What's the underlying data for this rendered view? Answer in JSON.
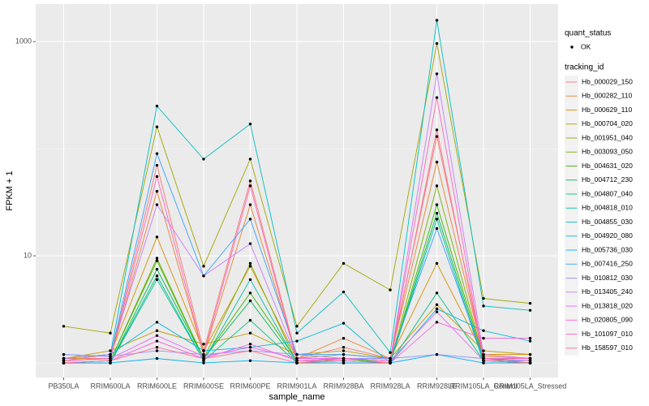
{
  "chart_data": {
    "type": "line",
    "x_label": "sample_name",
    "y_label": "FPKM + 1",
    "log_y": true,
    "grid": true,
    "legend_position": "right",
    "shape_legend": {
      "title": "quant_status",
      "labels": [
        "OK"
      ]
    },
    "legend_title": "tracking_id",
    "categories": [
      "PB350LA",
      "RRIM600LA",
      "RRIM600LE",
      "RRIM600SE",
      "RRIM600PE",
      "RRIM901LA",
      "RRIM928BA",
      "RRIM928LA",
      "RRIM928LE",
      "RRIM105LA_Control",
      "RRIM105LA_Stressed"
    ],
    "ylim": [
      0.73,
      2240
    ],
    "yticks": [
      10,
      1000
    ],
    "series": [
      {
        "name": "Hb_000029_150",
        "color": "#F8766D",
        "values": [
          1.1,
          1.1,
          70,
          1.3,
          50,
          1.1,
          1.4,
          1.1,
          130,
          1.2,
          1.1
        ]
      },
      {
        "name": "Hb_000282_110",
        "color": "#EA8331",
        "values": [
          1.05,
          1.1,
          40,
          1.2,
          30,
          1.1,
          1.7,
          1.1,
          75,
          1.15,
          1.1
        ]
      },
      {
        "name": "Hb_000629_110",
        "color": "#D89000",
        "values": [
          1.05,
          1.2,
          15,
          1.3,
          8,
          1.1,
          1.2,
          1.1,
          8.5,
          1.2,
          1.2
        ]
      },
      {
        "name": "Hb_000704_020",
        "color": "#C09B00",
        "values": [
          1.1,
          1.3,
          2.0,
          1.5,
          1.9,
          1.2,
          1.3,
          1.1,
          3.5,
          1.3,
          1.2
        ]
      },
      {
        "name": "Hb_001951_040",
        "color": "#A3A500",
        "values": [
          2.2,
          1.9,
          160,
          8,
          80,
          2.2,
          8.5,
          4.8,
          960,
          4.0,
          3.6
        ]
      },
      {
        "name": "Hb_003093_050",
        "color": "#7CAE00",
        "values": [
          1.0,
          1.05,
          9.5,
          1.1,
          8.5,
          1.0,
          1.1,
          1.0,
          45,
          1.1,
          1.05
        ]
      },
      {
        "name": "Hb_004631_020",
        "color": "#39B600",
        "values": [
          1.0,
          1.05,
          9,
          1.1,
          4.5,
          1.05,
          1.1,
          1.0,
          30,
          1.1,
          1.0
        ]
      },
      {
        "name": "Hb_004712_230",
        "color": "#00BB4E",
        "values": [
          1.0,
          1.0,
          7.5,
          1.1,
          3.8,
          1.0,
          1.05,
          1.0,
          25,
          1.05,
          1.0
        ]
      },
      {
        "name": "Hb_004807_040",
        "color": "#00BF7D",
        "values": [
          1.0,
          1.0,
          6.5,
          1.05,
          2.5,
          1.0,
          1.0,
          1.0,
          4.5,
          1.05,
          1.0
        ]
      },
      {
        "name": "Hb_004818_010",
        "color": "#00C1A3",
        "values": [
          1.0,
          1.0,
          6.0,
          1.05,
          6.0,
          1.0,
          1.0,
          1.0,
          22,
          1.0,
          1.0
        ]
      },
      {
        "name": "Hb_004855_030",
        "color": "#00BFC4",
        "values": [
          1.1,
          1.2,
          250,
          80,
          170,
          1.9,
          4.6,
          1.25,
          1580,
          3.4,
          3.1
        ]
      },
      {
        "name": "Hb_004920_080",
        "color": "#00BAE0",
        "values": [
          1.1,
          1.2,
          2.4,
          1.3,
          1.4,
          1.6,
          2.35,
          1.0,
          3.2,
          2.0,
          1.6
        ]
      },
      {
        "name": "Hb_005736_030",
        "color": "#00B0F6",
        "values": [
          1.0,
          1.0,
          1.1,
          1.0,
          1.05,
          1.0,
          1.0,
          1.0,
          1.2,
          1.0,
          1.0
        ]
      },
      {
        "name": "Hb_007416_250",
        "color": "#35A2FF",
        "values": [
          1.2,
          1.15,
          90,
          6.5,
          22,
          1.2,
          1.2,
          1.1,
          18,
          1.1,
          1.05
        ]
      },
      {
        "name": "Hb_010812_030",
        "color": "#9590FF",
        "values": [
          1.2,
          1.15,
          1.3,
          1.2,
          1.3,
          1.2,
          1.1,
          1.1,
          1.2,
          1.1,
          1.1
        ]
      },
      {
        "name": "Hb_013405_240",
        "color": "#C77CFF",
        "values": [
          1.1,
          1.2,
          30,
          6.5,
          13,
          1.1,
          1.1,
          1.05,
          500,
          1.2,
          1.1
        ]
      },
      {
        "name": "Hb_013818_020",
        "color": "#E76BF3",
        "values": [
          1.05,
          1.1,
          1.8,
          1.15,
          1.4,
          1.1,
          1.1,
          1.05,
          3.0,
          1.05,
          1.05
        ]
      },
      {
        "name": "Hb_020805_090",
        "color": "#FA62DB",
        "values": [
          1.0,
          1.05,
          1.6,
          1.1,
          1.5,
          1.05,
          1.05,
          1.0,
          2.4,
          1.7,
          1.7
        ]
      },
      {
        "name": "Hb_101097_010",
        "color": "#FF62BC",
        "values": [
          1.05,
          1.1,
          55,
          1.2,
          45,
          1.05,
          1.1,
          1.05,
          300,
          1.1,
          1.1
        ]
      },
      {
        "name": "Hb_158597_010",
        "color": "#FF6C91",
        "values": [
          1.0,
          1.05,
          1.4,
          1.1,
          1.3,
          1.0,
          1.05,
          1.0,
          150,
          1.05,
          1.0
        ]
      }
    ]
  }
}
